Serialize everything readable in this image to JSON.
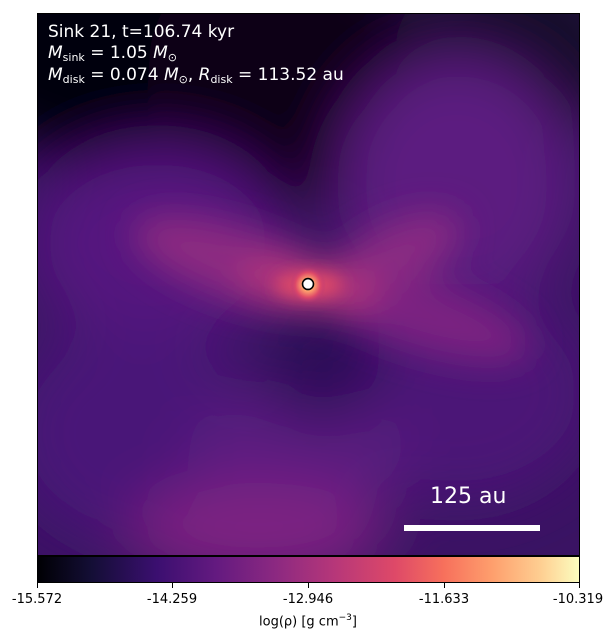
{
  "annotation": {
    "line1": "Sink 21, t=106.74 kyr",
    "m_sink_symbol": "M",
    "m_sink_sub": "sink",
    "m_sink_value": " = 1.05 ",
    "msun_symbol": "M",
    "msun_sub": "⊙",
    "m_disk_symbol": "M",
    "m_disk_sub": "disk",
    "m_disk_value": " = 0.074 ",
    "r_disk_symbol": "R",
    "r_disk_sub": "disk",
    "r_disk_value": " = 113.52 au"
  },
  "scalebar": {
    "label": "125 au"
  },
  "colorbar": {
    "ticks": [
      "-15.572",
      "-14.259",
      "-12.946",
      "-11.633",
      "-10.319"
    ],
    "label_prefix": "log(ρ) [g cm",
    "label_exp": "−3",
    "label_suffix": "]",
    "colormap": "magma"
  }
}
